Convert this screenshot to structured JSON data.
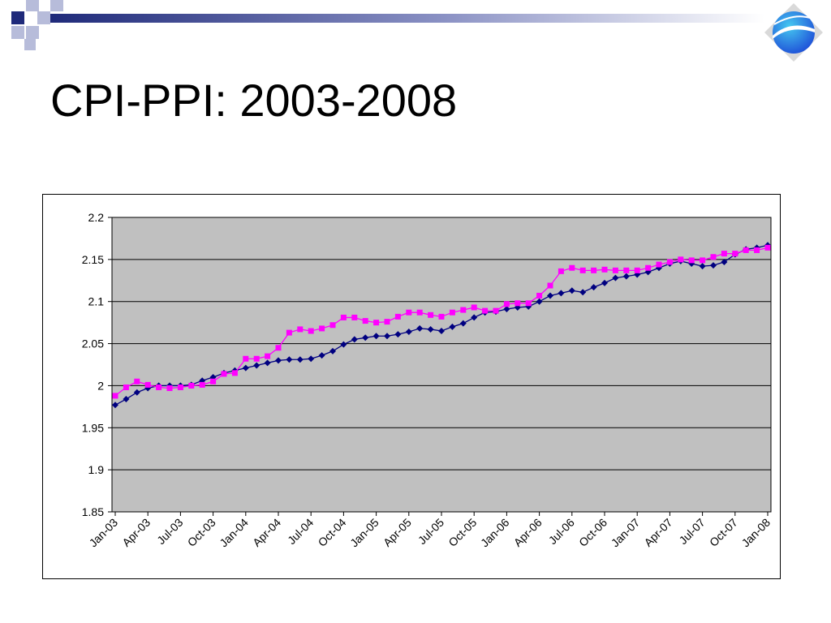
{
  "slide": {
    "title": "CPI-PPI: 2003-2008"
  },
  "theme": {
    "accent_dark": "#1F2A7A",
    "accent_light": "#B7BCDA",
    "logo_blue": "#1E4FD8",
    "logo_cyan": "#45C8F0",
    "plot_bg": "#C0C0C0"
  },
  "icons": {
    "logo": "globe-logo-icon"
  },
  "chart_data": {
    "type": "line",
    "ylim": [
      1.85,
      2.2
    ],
    "yticks": [
      "2.2",
      "2.15",
      "2.1",
      "2.05",
      "2",
      "1.95",
      "1.9",
      "1.85"
    ],
    "xtick_labels": [
      "Jan-03",
      "Apr-03",
      "Jul-03",
      "Oct-03",
      "Jan-04",
      "Apr-04",
      "Jul-04",
      "Oct-04",
      "Jan-05",
      "Apr-05",
      "Jul-05",
      "Oct-05",
      "Jan-06",
      "Apr-06",
      "Jul-06",
      "Oct-06",
      "Jan-07",
      "Apr-07",
      "Jul-07",
      "Oct-07",
      "Jan-08"
    ],
    "grid": true,
    "legend": "none",
    "series": [
      {
        "color": "#000080",
        "marker": "diamond",
        "values": [
          1.977,
          1.984,
          1.992,
          1.997,
          2.0,
          2.0,
          2.0,
          2.001,
          2.006,
          2.01,
          2.015,
          2.018,
          2.021,
          2.024,
          2.027,
          2.03,
          2.031,
          2.031,
          2.032,
          2.036,
          2.041,
          2.049,
          2.055,
          2.057,
          2.059,
          2.059,
          2.061,
          2.064,
          2.068,
          2.067,
          2.065,
          2.07,
          2.074,
          2.081,
          2.087,
          2.088,
          2.091,
          2.093,
          2.094,
          2.1,
          2.107,
          2.11,
          2.113,
          2.111,
          2.117,
          2.122,
          2.128,
          2.13,
          2.132,
          2.135,
          2.14,
          2.145,
          2.148,
          2.145,
          2.142,
          2.143,
          2.147,
          2.156,
          2.162,
          2.164,
          2.167
        ]
      },
      {
        "color": "#FF00FF",
        "marker": "square",
        "values": [
          1.988,
          1.998,
          2.005,
          2.001,
          1.998,
          1.997,
          1.998,
          2.0,
          2.001,
          2.005,
          2.014,
          2.015,
          2.032,
          2.032,
          2.035,
          2.045,
          2.063,
          2.067,
          2.065,
          2.068,
          2.072,
          2.081,
          2.081,
          2.077,
          2.075,
          2.076,
          2.082,
          2.087,
          2.087,
          2.084,
          2.082,
          2.087,
          2.09,
          2.093,
          2.089,
          2.089,
          2.097,
          2.098,
          2.098,
          2.107,
          2.119,
          2.136,
          2.14,
          2.137,
          2.137,
          2.138,
          2.137,
          2.137,
          2.137,
          2.14,
          2.144,
          2.147,
          2.15,
          2.149,
          2.149,
          2.153,
          2.157,
          2.157,
          2.161,
          2.161,
          2.164
        ]
      }
    ]
  }
}
